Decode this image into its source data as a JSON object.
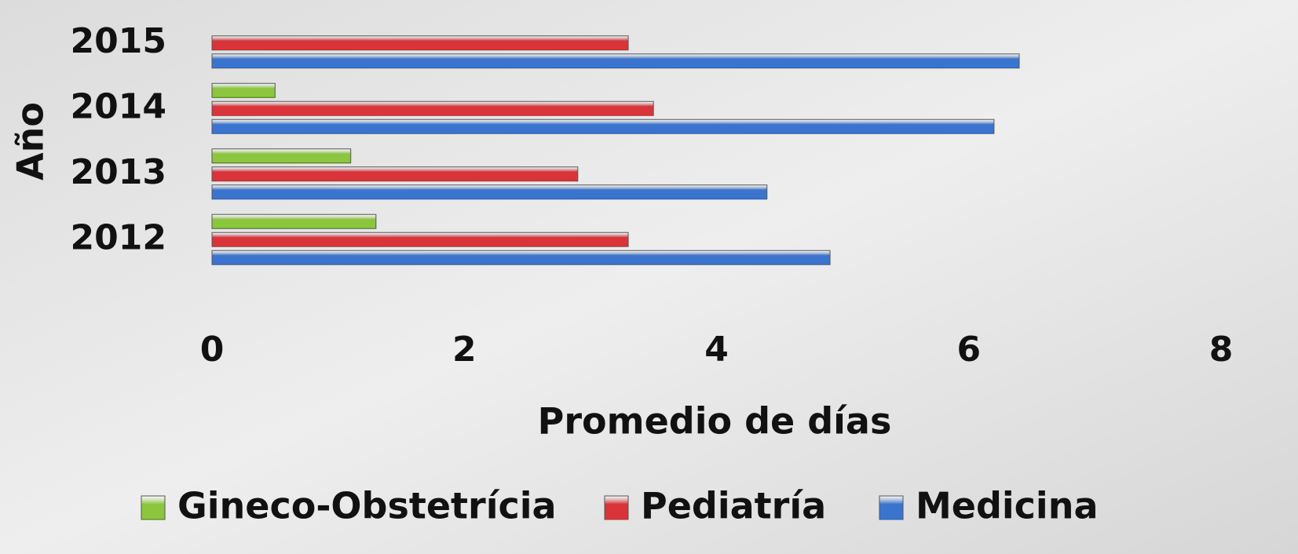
{
  "chart_data": {
    "type": "bar",
    "orientation": "horizontal",
    "x_label": "Promedio de días",
    "y_label": "Año",
    "categories": [
      "2012",
      "2013",
      "2014",
      "2015"
    ],
    "series": [
      {
        "name": "Gineco-Obstetrícia",
        "color": "#8cc63e",
        "values": [
          1.3,
          1.1,
          0.5,
          null
        ]
      },
      {
        "name": "Pediatría",
        "color": "#d9343a",
        "values": [
          3.3,
          2.9,
          3.5,
          3.3
        ]
      },
      {
        "name": "Medicina",
        "color": "#3a74cf",
        "values": [
          4.9,
          4.4,
          6.2,
          6.4
        ]
      }
    ],
    "xlim": [
      0,
      8
    ],
    "xticks": [
      0,
      2,
      4,
      6,
      8
    ],
    "grid": false,
    "legend": "bottom"
  }
}
